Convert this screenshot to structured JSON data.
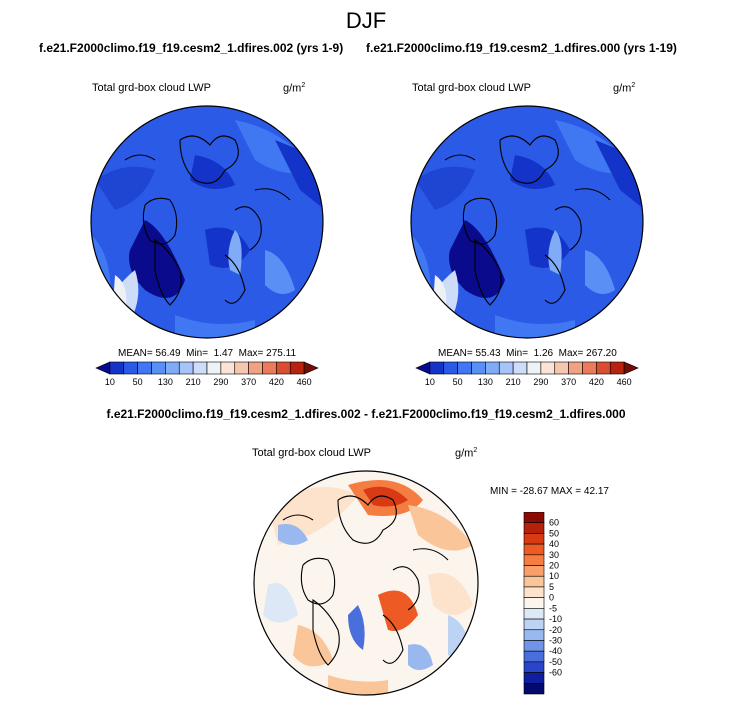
{
  "suptitle": "DJF",
  "panels": [
    {
      "case": "f.e21.F2000climo.f19_f19.cesm2_1.dfires.002 (yrs 1-9)",
      "variable": "Total grd-box cloud LWP",
      "units_base": "g/m",
      "units_exp": "2",
      "mean_label": "MEAN=",
      "mean": "56.49",
      "min_label": "Min=",
      "min": "1.47",
      "max_label": "Max=",
      "max": "275.11"
    },
    {
      "case": "f.e21.F2000climo.f19_f19.cesm2_1.dfires.000 (yrs 1-19)",
      "variable": "Total grd-box cloud LWP",
      "units_base": "g/m",
      "units_exp": "2",
      "mean_label": "MEAN=",
      "mean": "55.43",
      "min_label": "Min=",
      "min": "1.26",
      "max_label": "Max=",
      "max": "267.20"
    }
  ],
  "diff": {
    "title": "f.e21.F2000climo.f19_f19.cesm2_1.dfires.002 - f.e21.F2000climo.f19_f19.cesm2_1.dfires.000",
    "variable": "Total grd-box cloud LWP",
    "units_base": "g/m",
    "units_exp": "2",
    "minmax": "MIN = -28.67 MAX = 42.17"
  },
  "chart_data": [
    {
      "type": "heatmap",
      "projection": "north-polar-stereographic",
      "title": "Total grd-box cloud LWP",
      "units": "g/m2",
      "colorbar": {
        "orientation": "horizontal",
        "ticks": [
          "10",
          "50",
          "130",
          "210",
          "290",
          "370",
          "420",
          "460"
        ],
        "colors": [
          "#0a0a8c",
          "#1433c8",
          "#2a5ae6",
          "#3f78f2",
          "#5a90f5",
          "#7fabf7",
          "#a6c4f8",
          "#cddcf8",
          "#eef2f7",
          "#fbe3d5",
          "#f6c6ae",
          "#f1a184",
          "#ea7a5a",
          "#d94d30",
          "#b8230f",
          "#7a0a05"
        ]
      },
      "mean": 56.49,
      "min": 1.47,
      "max": 275.11
    },
    {
      "type": "heatmap",
      "projection": "north-polar-stereographic",
      "title": "Total grd-box cloud LWP",
      "units": "g/m2",
      "colorbar": {
        "orientation": "horizontal",
        "ticks": [
          "10",
          "50",
          "130",
          "210",
          "290",
          "370",
          "420",
          "460"
        ],
        "colors": [
          "#0a0a8c",
          "#1433c8",
          "#2a5ae6",
          "#3f78f2",
          "#5a90f5",
          "#7fabf7",
          "#a6c4f8",
          "#cddcf8",
          "#eef2f7",
          "#fbe3d5",
          "#f6c6ae",
          "#f1a184",
          "#ea7a5a",
          "#d94d30",
          "#b8230f",
          "#7a0a05"
        ]
      },
      "mean": 55.43,
      "min": 1.26,
      "max": 267.2
    },
    {
      "type": "heatmap",
      "projection": "north-polar-stereographic",
      "title": "Total grd-box cloud LWP",
      "units": "g/m2",
      "colorbar": {
        "orientation": "vertical",
        "ticks": [
          "60",
          "50",
          "40",
          "30",
          "20",
          "10",
          "5",
          "0",
          "-5",
          "-10",
          "-20",
          "-30",
          "-40",
          "-50",
          "-60"
        ],
        "colors": [
          "#8b0a04",
          "#b5210b",
          "#d83a14",
          "#ee5a24",
          "#f57d42",
          "#f9a06a",
          "#fbc59a",
          "#fde3cb",
          "#fbf5ee",
          "#dde8f6",
          "#bcd3f3",
          "#98b8ef",
          "#6f94e8",
          "#4a6fdd",
          "#2a46c8",
          "#0f1fa0",
          "#030a6e"
        ]
      },
      "min": -28.67,
      "max": 42.17
    }
  ]
}
